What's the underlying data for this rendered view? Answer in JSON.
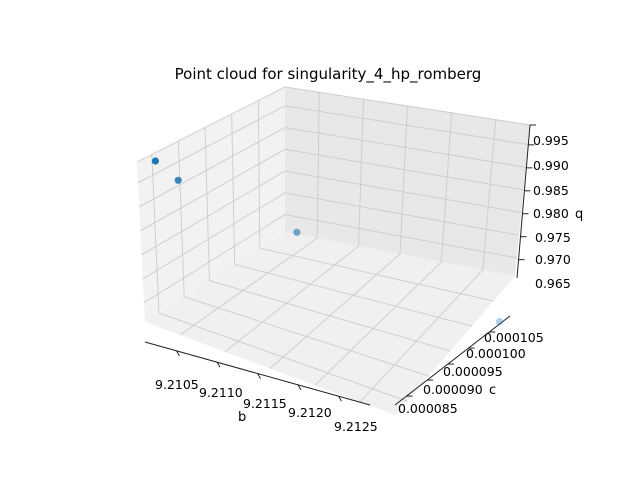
{
  "chart_data": {
    "type": "scatter",
    "projection": "3d",
    "title": "Point cloud for singularity_4_hp_romberg",
    "xlabel": "b",
    "ylabel": "c",
    "zlabel": "q",
    "grid": true,
    "x_ticks": [
      "9.2105",
      "9.2110",
      "9.2115",
      "9.2120",
      "9.2125"
    ],
    "y_ticks": [
      "0.000085",
      "0.000090",
      "0.000095",
      "0.000100",
      "0.000105"
    ],
    "z_ticks": [
      "0.965",
      "0.970",
      "0.975",
      "0.980",
      "0.985",
      "0.990",
      "0.995"
    ],
    "point_color": "#1f77b4",
    "points": [
      {
        "b": 9.2101,
        "c": 8.2e-05,
        "q": 0.9995
      },
      {
        "b": 9.2103,
        "c": 8.3e-05,
        "q": 0.9955
      },
      {
        "b": 9.2112,
        "c": 9.1e-05,
        "q": 0.9835
      },
      {
        "b": 9.2126,
        "c": 0.000107,
        "q": 0.96
      }
    ]
  }
}
